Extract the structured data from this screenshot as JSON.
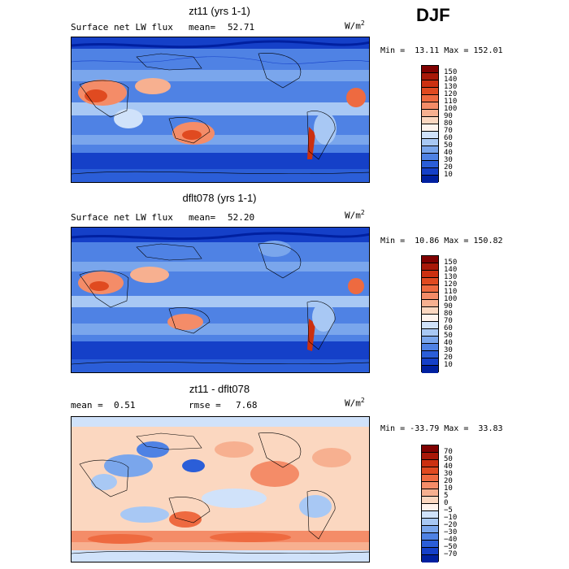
{
  "season": "DJF",
  "units": {
    "base": "W/m",
    "exp": "2"
  },
  "panels": [
    {
      "title": "zt11 (yrs 1-1)",
      "left_label": "Surface net LW flux",
      "stat_label": "mean=",
      "stat_value": "52.71",
      "minmax": "Min =  13.11 Max = 152.01",
      "colorbar": {
        "ticks": [
          "150",
          "140",
          "130",
          "120",
          "110",
          "100",
          "90",
          "80",
          "70",
          "60",
          "50",
          "40",
          "30",
          "20",
          "10"
        ],
        "colors": [
          "#800000",
          "#a81808",
          "#cc3010",
          "#e04a20",
          "#ee6a40",
          "#f48c68",
          "#f7b090",
          "#fbd7c0",
          "#fff4ee",
          "#d0e2fa",
          "#a8c8f4",
          "#7aa6ec",
          "#4f82e4",
          "#2b5ed8",
          "#1540c8",
          "#0020a0"
        ]
      },
      "map_base": "#2b5ed8"
    },
    {
      "title": "dflt078 (yrs 1-1)",
      "left_label": "Surface net LW flux",
      "stat_label": "mean=",
      "stat_value": "52.20",
      "minmax": "Min =  10.86 Max = 150.82",
      "colorbar": {
        "ticks": [
          "150",
          "140",
          "130",
          "120",
          "110",
          "100",
          "90",
          "80",
          "70",
          "60",
          "50",
          "40",
          "30",
          "20",
          "10"
        ],
        "colors": [
          "#800000",
          "#a81808",
          "#cc3010",
          "#e04a20",
          "#ee6a40",
          "#f48c68",
          "#f7b090",
          "#fbd7c0",
          "#fff4ee",
          "#d0e2fa",
          "#a8c8f4",
          "#7aa6ec",
          "#4f82e4",
          "#2b5ed8",
          "#1540c8",
          "#0020a0"
        ]
      },
      "map_base": "#2b5ed8"
    },
    {
      "title": "zt11 - dflt078",
      "left_label": "mean =",
      "left_value": "0.51",
      "stat_label": "rmse =",
      "stat_value": "7.68",
      "minmax": "Min = -33.79 Max =  33.83",
      "colorbar": {
        "ticks": [
          "70",
          "50",
          "40",
          "30",
          "20",
          "10",
          "5",
          "0",
          "−5",
          "−10",
          "−20",
          "−30",
          "−40",
          "−50",
          "−70"
        ],
        "colors": [
          "#800000",
          "#a81808",
          "#cc3010",
          "#e04a20",
          "#ee6a40",
          "#f48c68",
          "#f7b090",
          "#fbd7c0",
          "#fff4ee",
          "#d0e2fa",
          "#a8c8f4",
          "#7aa6ec",
          "#4f82e4",
          "#2b5ed8",
          "#1540c8",
          "#0020a0"
        ]
      },
      "map_base": "#fbd7c0"
    }
  ]
}
